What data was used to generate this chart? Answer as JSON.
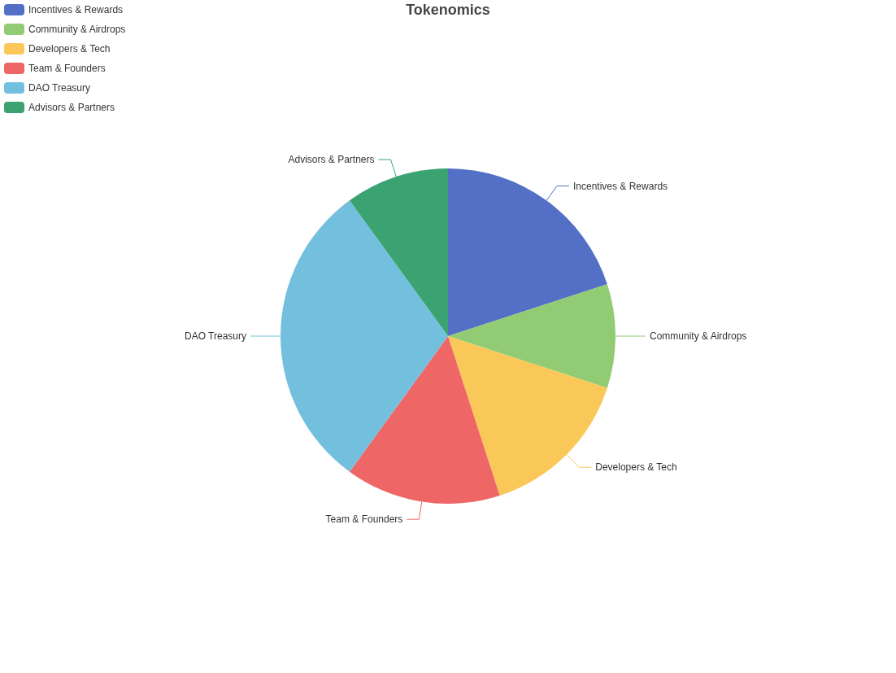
{
  "chart_data": {
    "type": "pie",
    "title": "Tokenomics",
    "categories": [
      "Incentives & Rewards",
      "Community & Airdrops",
      "Developers & Tech",
      "Team & Founders",
      "DAO Treasury",
      "Advisors & Partners"
    ],
    "values": [
      20,
      10,
      15,
      15,
      30,
      10
    ],
    "colors": [
      "#5470c6",
      "#91cc75",
      "#fac858",
      "#ee6666",
      "#73c0de",
      "#3ba272"
    ],
    "legend": "top left"
  }
}
